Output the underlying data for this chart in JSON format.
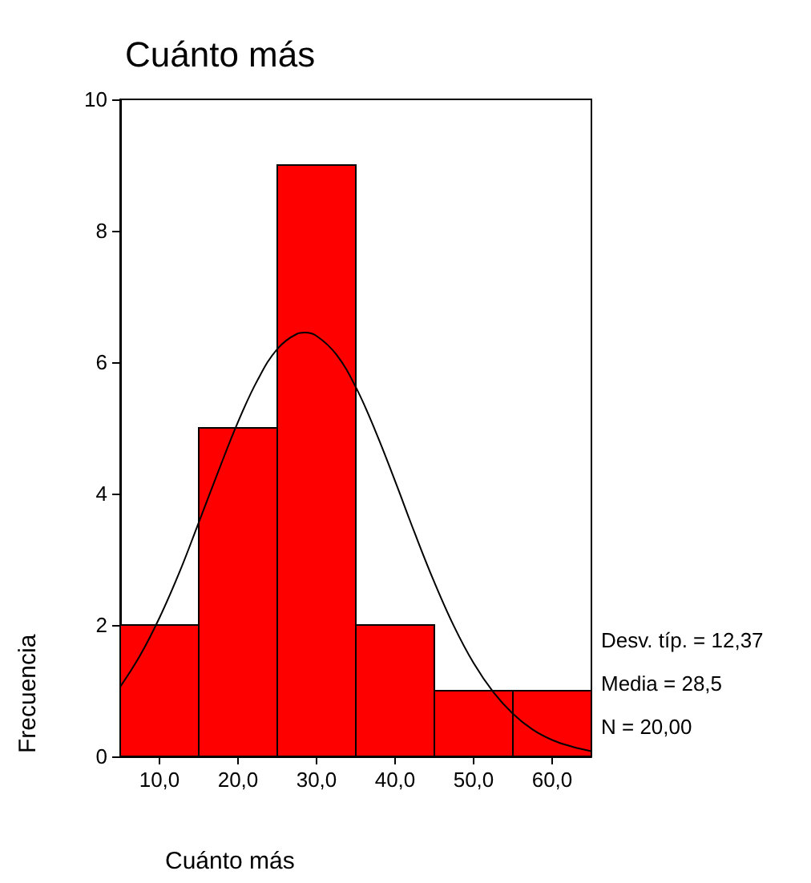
{
  "chart_data": {
    "type": "histogram",
    "title": "Cuánto más",
    "xlabel": "Cuánto más",
    "ylabel": "Frecuencia",
    "bins": [
      5,
      15,
      25,
      35,
      45,
      55,
      65
    ],
    "values": [
      2,
      5,
      9,
      2,
      1,
      1
    ],
    "color": "#ff0000",
    "series": [
      {
        "type": "line",
        "color": "#000000",
        "x": [
          5,
          7.5,
          10,
          12.5,
          15,
          17.5,
          20,
          22.5,
          25,
          27.5,
          28.5,
          30,
          32.5,
          35,
          37.5,
          40,
          42.5,
          45,
          47.5,
          50,
          52.5,
          55,
          57.5,
          60,
          62.5,
          65
        ],
        "values": [
          1.06,
          1.53,
          2.11,
          2.79,
          3.56,
          4.34,
          5.09,
          5.73,
          6.2,
          6.43,
          6.45,
          6.4,
          6.12,
          5.62,
          4.95,
          4.19,
          3.4,
          2.65,
          1.98,
          1.42,
          0.98,
          0.65,
          0.41,
          0.25,
          0.15,
          0.08
        ]
      }
    ],
    "xlim": [
      5,
      65
    ],
    "xticks": [
      {
        "value": 10,
        "label": "10,0"
      },
      {
        "value": 20,
        "label": "20,0"
      },
      {
        "value": 30,
        "label": "30,0"
      },
      {
        "value": 40,
        "label": "40,0"
      },
      {
        "value": 50,
        "label": "50,0"
      },
      {
        "value": 60,
        "label": "60,0"
      }
    ],
    "ylim": [
      0,
      10
    ],
    "yticks": [
      0,
      2,
      4,
      6,
      8,
      10
    ],
    "annotations": [
      "Desv. típ. = 12,37",
      "Media = 28,5",
      "N = 20,00"
    ],
    "grid": false,
    "marker": "none",
    "line_style": "solid"
  }
}
